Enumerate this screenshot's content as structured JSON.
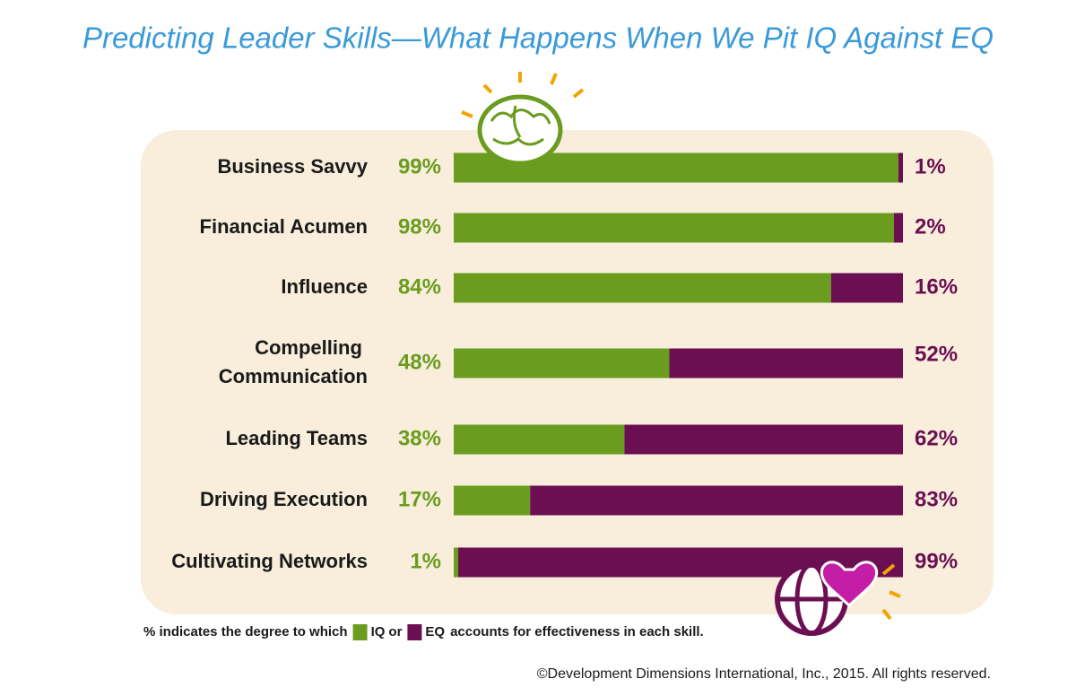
{
  "chart_data": {
    "type": "stacked-bar-horizontal",
    "title": "Predicting Leader Skills—What Happens When We Pit IQ Against EQ",
    "categories": [
      "Business Savvy",
      "Financial Acumen",
      "Influence",
      "Compelling Communication",
      "Leading Teams",
      "Driving Execution",
      "Cultivating Networks"
    ],
    "series": [
      {
        "name": "IQ",
        "color": "#6a9c1f",
        "values": [
          99,
          98,
          84,
          48,
          38,
          17,
          1
        ],
        "value_labels": [
          "99%",
          "98%",
          "84%",
          "48%",
          "38%",
          "17%",
          "1%"
        ]
      },
      {
        "name": "EQ",
        "color": "#6b0f52",
        "values": [
          1,
          2,
          16,
          52,
          62,
          83,
          99
        ],
        "value_labels": [
          "1%",
          "2%",
          "16%",
          "52%",
          "62%",
          "83%",
          "99%"
        ]
      }
    ],
    "xlim": [
      0,
      100
    ],
    "note_prefix": "% indicates the degree to which",
    "note_joiner": "or",
    "note_suffix": "accounts for effectiveness in each skill.",
    "copyright": "©Development Dimensions International, Inc., 2015. All rights reserved."
  }
}
